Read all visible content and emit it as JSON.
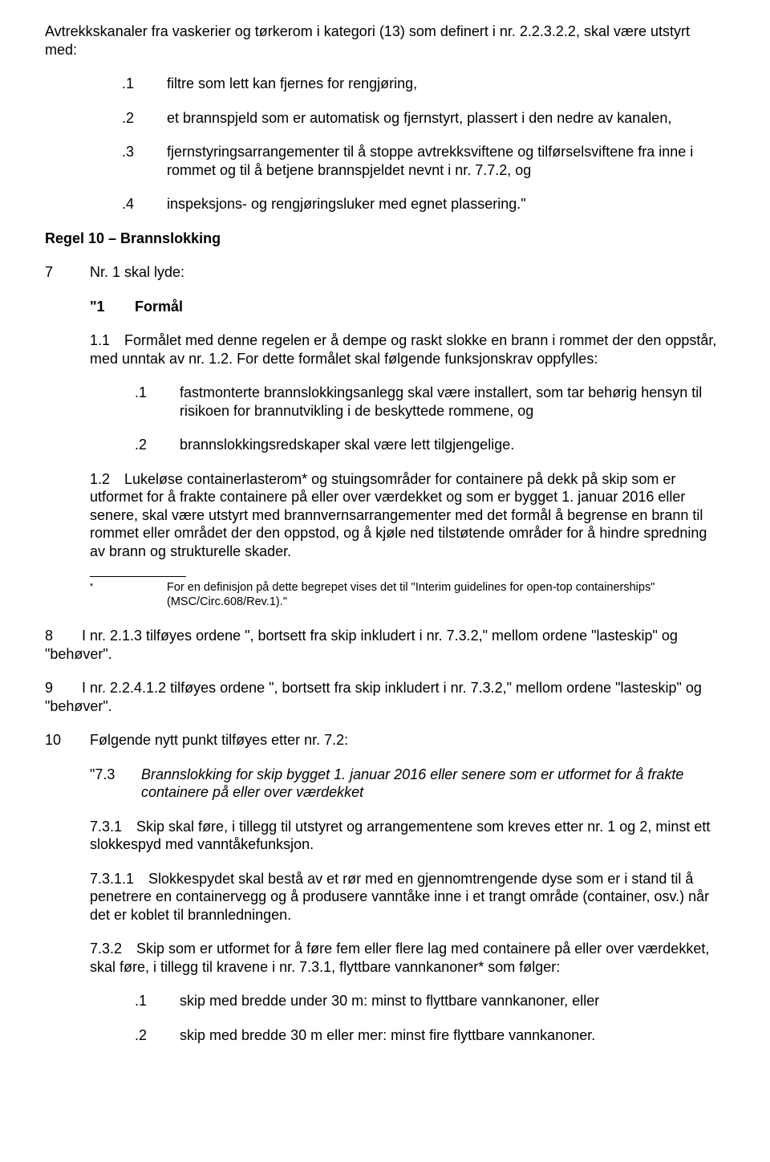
{
  "intro": "Avtrekkskanaler fra vaskerier og tørkerom i kategori (13) som definert i nr. 2.2.3.2.2, skal være utstyrt med:",
  "list1": [
    {
      "n": ".1",
      "t": "filtre som lett kan fjernes for rengjøring,"
    },
    {
      "n": ".2",
      "t": "et brannspjeld som er automatisk og fjernstyrt, plassert i den nedre av kanalen,"
    },
    {
      "n": ".3",
      "t": "fjernstyringsarrangementer til å stoppe avtrekksviftene og tilførselsviftene fra inne i rommet og til å betjene brannspjeldet nevnt i nr. 7.7.2, og"
    },
    {
      "n": ".4",
      "t": "inspeksjons- og rengjøringsluker med egnet plassering.\""
    }
  ],
  "regel10_heading": "Regel 10 – Brannslokking",
  "p7": {
    "n": "7",
    "t": "Nr. 1 skal lyde:"
  },
  "formal": {
    "n": "\"1",
    "t": "Formål"
  },
  "p1_1": "1.1 Formålet med denne regelen er å dempe og raskt slokke en brann i rommet der den oppstår, med unntak av nr. 1.2. For dette formålet skal følgende funksjonskrav oppfylles:",
  "sublist": [
    {
      "n": ".1",
      "t": "fastmonterte brannslokkingsanlegg skal være installert, som tar behørig hensyn til risikoen for brannutvikling i de beskyttede rommene, og"
    },
    {
      "n": ".2",
      "t": "brannslokkingsredskaper skal være lett tilgjengelige."
    }
  ],
  "p1_2": "1.2 Lukeløse containerlasterom* og stuingsområder for containere på dekk på skip som er utformet for å frakte containere på eller over værdekket og som er bygget 1. januar 2016 eller senere, skal være utstyrt med brannvernsarrangementer med det formål å begrense en brann til rommet eller området der den oppstod, og å kjøle ned tilstøtende områder for å hindre spredning av brann og strukturelle skader.",
  "footnote": {
    "star": "*",
    "t": "For en definisjon på dette begrepet vises det til \"Interim guidelines for open-top containerships\" (MSC/Circ.608/Rev.1).\""
  },
  "p8": "8  I nr. 2.1.3 tilføyes ordene \", bortsett fra skip inkludert i nr. 7.3.2,\" mellom ordene \"lasteskip\" og \"behøver\".",
  "p9": "9  I nr. 2.2.4.1.2 tilføyes ordene \", bortsett fra skip inkludert i nr. 7.3.2,\" mellom ordene \"lasteskip\" og \"behøver\".",
  "p10": {
    "n": "10",
    "t": "Følgende nytt punkt tilføyes etter nr. 7.2:"
  },
  "p7_3_title": {
    "n": "\"7.3",
    "t": "Brannslokking for skip bygget 1. januar 2016 eller senere som er utformet for å frakte containere på eller over værdekket"
  },
  "p7_3_1": "7.3.1 Skip skal føre, i tillegg til utstyret og arrangementene som kreves etter nr. 1 og 2, minst ett slokkespyd med vanntåkefunksjon.",
  "p7_3_1_1": "7.3.1.1 Slokkespydet skal bestå av et rør med en gjennomtrengende dyse som er i stand til å penetrere en containervegg og å produsere vanntåke inne i et trangt område (container, osv.) når det er koblet til brannledningen.",
  "p7_3_2": "7.3.2 Skip som er utformet for å føre fem eller flere lag med containere på eller over værdekket, skal føre, i tillegg til kravene i nr. 7.3.1, flyttbare vannkanoner* som følger:",
  "sublist2": [
    {
      "n": ".1",
      "t": "skip med bredde under 30 m: minst to flyttbare vannkanoner, eller"
    },
    {
      "n": ".2",
      "t": "skip med bredde 30 m eller mer: minst fire flyttbare vannkanoner."
    }
  ]
}
